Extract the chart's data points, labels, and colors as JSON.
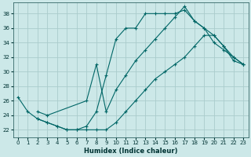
{
  "title": "",
  "xlabel": "Humidex (Indice chaleur)",
  "xlim": [
    -0.5,
    23.5
  ],
  "ylim": [
    21.0,
    39.5
  ],
  "bg_color": "#cce8e8",
  "grid_color": "#aacccc",
  "line_color": "#006666",
  "line1_x": [
    0,
    1,
    2,
    3,
    4,
    5,
    6,
    7,
    8,
    9,
    10,
    11,
    12,
    13,
    14,
    15,
    16,
    17,
    18,
    19,
    20,
    21,
    22,
    23
  ],
  "line1_y": [
    26.5,
    24.5,
    23.5,
    23.0,
    22.5,
    22.0,
    22.0,
    22.5,
    24.5,
    29.5,
    34.5,
    36.0,
    36.0,
    38.0,
    38.0,
    38.0,
    38.0,
    38.5,
    37.0,
    36.0,
    34.0,
    33.0,
    32.0,
    31.0
  ],
  "line2_x": [
    2,
    3,
    4,
    5,
    6,
    7,
    8,
    9,
    10,
    11,
    12,
    13,
    14,
    15,
    16,
    17,
    18,
    19,
    20,
    21,
    22,
    23
  ],
  "line2_y": [
    23.5,
    23.0,
    22.5,
    22.0,
    22.0,
    22.0,
    22.0,
    22.0,
    23.0,
    24.5,
    26.0,
    27.5,
    29.0,
    30.0,
    31.0,
    32.0,
    33.5,
    35.0,
    35.0,
    33.5,
    32.0,
    31.0
  ],
  "line3_x": [
    2,
    3,
    7,
    8,
    9,
    10,
    11,
    12,
    13,
    14,
    15,
    16,
    17,
    18,
    19,
    20,
    21,
    22,
    23
  ],
  "line3_y": [
    24.5,
    24.0,
    26.0,
    31.0,
    24.5,
    27.5,
    29.5,
    31.5,
    33.0,
    34.5,
    36.0,
    37.5,
    39.0,
    37.0,
    36.0,
    35.0,
    33.5,
    31.5,
    31.0
  ],
  "yticks": [
    22,
    24,
    26,
    28,
    30,
    32,
    34,
    36,
    38
  ],
  "xticks": [
    0,
    1,
    2,
    3,
    4,
    5,
    6,
    7,
    8,
    9,
    10,
    11,
    12,
    13,
    14,
    15,
    16,
    17,
    18,
    19,
    20,
    21,
    22,
    23
  ]
}
